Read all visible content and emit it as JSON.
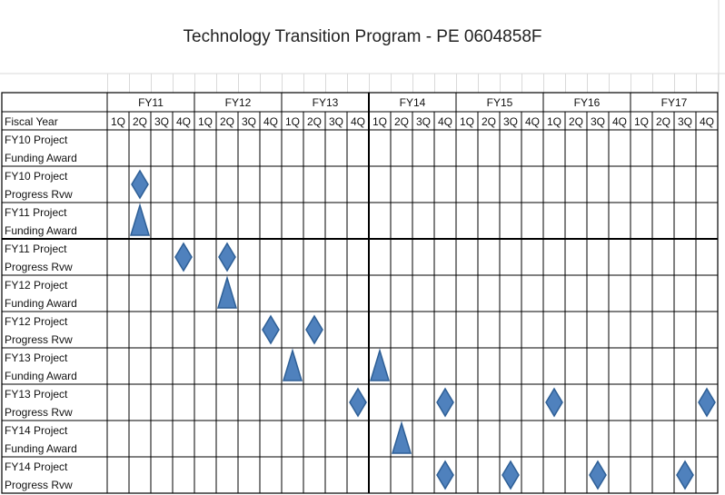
{
  "title": "Technology Transition Program - PE 0604858F",
  "header": {
    "fiscal_year_label": "Fiscal Year",
    "years": [
      "FY11",
      "FY12",
      "FY13",
      "FY14",
      "FY15",
      "FY16",
      "FY17"
    ],
    "quarters": [
      "1Q",
      "2Q",
      "3Q",
      "4Q"
    ]
  },
  "rows": [
    {
      "line1": "FY10 Project",
      "line2": "Funding Award"
    },
    {
      "line1": "FY10 Project",
      "line2": "Progress Rvw"
    },
    {
      "line1": "FY11 Project",
      "line2": "Funding Award"
    },
    {
      "line1": "FY11 Project",
      "line2": "Progress Rvw"
    },
    {
      "line1": "FY12 Project",
      "line2": "Funding Award"
    },
    {
      "line1": "FY12 Project",
      "line2": "Progress Rvw"
    },
    {
      "line1": "FY13 Project",
      "line2": "Funding Award"
    },
    {
      "line1": "FY13 Project",
      "line2": "Progress Rvw"
    },
    {
      "line1": "FY14 Project",
      "line2": "Funding Award"
    },
    {
      "line1": "FY14 Project",
      "line2": "Progress Rvw"
    }
  ],
  "milestones": [
    {
      "row": 1,
      "year": "FY11",
      "quarter": "2Q",
      "shape": "diamond"
    },
    {
      "row": 2,
      "year": "FY11",
      "quarter": "2Q",
      "shape": "triangle"
    },
    {
      "row": 3,
      "year": "FY11",
      "quarter": "4Q",
      "shape": "diamond"
    },
    {
      "row": 3,
      "year": "FY12",
      "quarter": "2Q",
      "shape": "diamond"
    },
    {
      "row": 4,
      "year": "FY12",
      "quarter": "2Q",
      "shape": "triangle"
    },
    {
      "row": 5,
      "year": "FY12",
      "quarter": "4Q",
      "shape": "diamond"
    },
    {
      "row": 5,
      "year": "FY13",
      "quarter": "2Q",
      "shape": "diamond"
    },
    {
      "row": 6,
      "year": "FY13",
      "quarter": "1Q",
      "shape": "triangle"
    },
    {
      "row": 6,
      "year": "FY14",
      "quarter": "1Q",
      "shape": "triangle"
    },
    {
      "row": 7,
      "year": "FY13",
      "quarter": "4Q",
      "shape": "diamond"
    },
    {
      "row": 7,
      "year": "FY14",
      "quarter": "4Q",
      "shape": "diamond"
    },
    {
      "row": 7,
      "year": "FY16",
      "quarter": "1Q",
      "shape": "diamond"
    },
    {
      "row": 7,
      "year": "FY17",
      "quarter": "4Q",
      "shape": "diamond"
    },
    {
      "row": 8,
      "year": "FY14",
      "quarter": "2Q",
      "shape": "triangle"
    },
    {
      "row": 9,
      "year": "FY14",
      "quarter": "4Q",
      "shape": "diamond"
    },
    {
      "row": 9,
      "year": "FY15",
      "quarter": "3Q",
      "shape": "diamond"
    },
    {
      "row": 9,
      "year": "FY16",
      "quarter": "3Q",
      "shape": "diamond"
    },
    {
      "row": 9,
      "year": "FY17",
      "quarter": "3Q",
      "shape": "diamond"
    }
  ],
  "colors": {
    "marker_fill": "#4f81bd",
    "marker_stroke": "#2e5f96",
    "grid_line": "#000000",
    "bg_grid": "#d9d9d9"
  }
}
